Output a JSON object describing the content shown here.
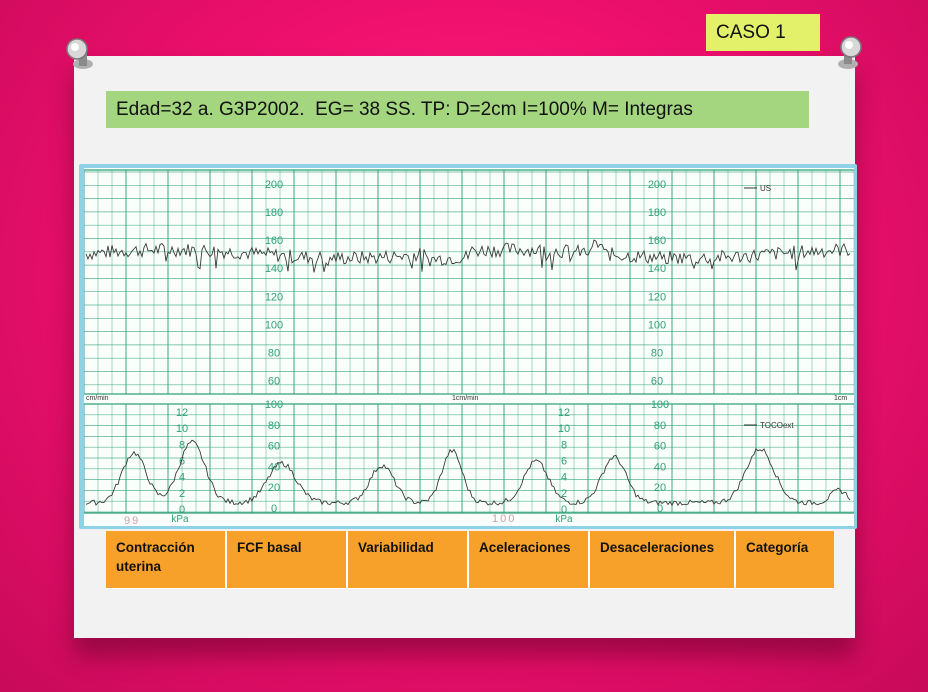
{
  "slide": {
    "case_label": "CASO 1",
    "patient_info": "Edad=32 a. G3P2002.  EG= 38 SS. TP: D=2cm I=100% M= Integras"
  },
  "ctg": {
    "fhr_scale_labels": [
      "200",
      "180",
      "160",
      "140",
      "120",
      "100",
      "80",
      "60"
    ],
    "toco_mmhg_labels": [
      "100",
      "80",
      "60",
      "40",
      "20",
      "0"
    ],
    "toco_kpa_labels": [
      "12",
      "10",
      "8",
      "6",
      "4",
      "2",
      "0"
    ],
    "kpa_unit": "kPa",
    "us_legend": "US",
    "toco_legend": "TOCOext",
    "speed_left": "cm/min",
    "speed_mid": "1cm/min",
    "speed_right": "1cm",
    "page_left": "99",
    "page_right": "100",
    "colors": {
      "grid": "#2fa07a",
      "trace": "#3a3a3a",
      "frame": "#8fd2e8"
    }
  },
  "table": {
    "headers": [
      "Contracción uterina",
      "FCF basal",
      "Variabilidad",
      "Aceleraciones",
      "Desaceleraciones",
      "Categoría"
    ]
  }
}
